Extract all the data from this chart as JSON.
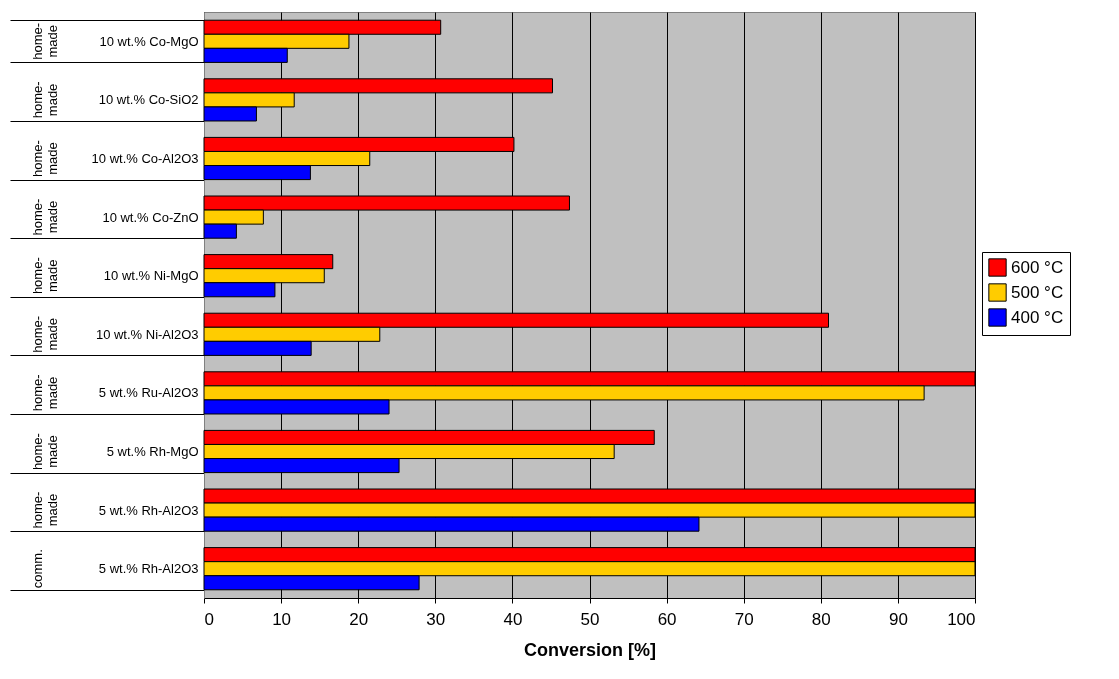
{
  "chart_data": {
    "type": "bar",
    "orientation": "horizontal",
    "xlabel": "Conversion [%]",
    "categories": [
      "10 wt.% Co-MgO",
      "10 wt.% Co-SiO2",
      "10 wt.% Co-Al2O3",
      "10 wt.% Co-ZnO",
      "10 wt.% Ni-MgO",
      "10 wt.% Ni-Al2O3",
      "5 wt.% Ru-Al2O3",
      "5 wt.% Rh-MgO",
      "5 wt.% Rh-Al2O3",
      "5 wt.% Rh-Al2O3"
    ],
    "series": [
      {
        "name": "600 °C",
        "color": "#ff0000",
        "values": [
          30.7,
          45.2,
          40.2,
          47.4,
          16.7,
          81.0,
          100,
          58.4,
          100,
          100
        ]
      },
      {
        "name": "500 °C",
        "color": "#ffcc00",
        "values": [
          18.8,
          11.7,
          21.5,
          7.7,
          15.6,
          22.8,
          93.4,
          53.2,
          100,
          100
        ]
      },
      {
        "name": "400 °C",
        "color": "#0000ff",
        "values": [
          10.8,
          6.8,
          13.8,
          4.2,
          9.2,
          13.9,
          24.0,
          25.3,
          64.2,
          27.9
        ]
      }
    ],
    "annotations": [
      "home-made",
      "home-made",
      "home-made",
      "home-made",
      "home-made",
      "home-made",
      "home-made",
      "home-made",
      "home-made",
      "comm."
    ],
    "xlim": [
      0,
      100
    ],
    "xticks": [
      0,
      10,
      20,
      30,
      40,
      50,
      60,
      70,
      80,
      90,
      100
    ],
    "grid": "x",
    "legend": "right"
  }
}
